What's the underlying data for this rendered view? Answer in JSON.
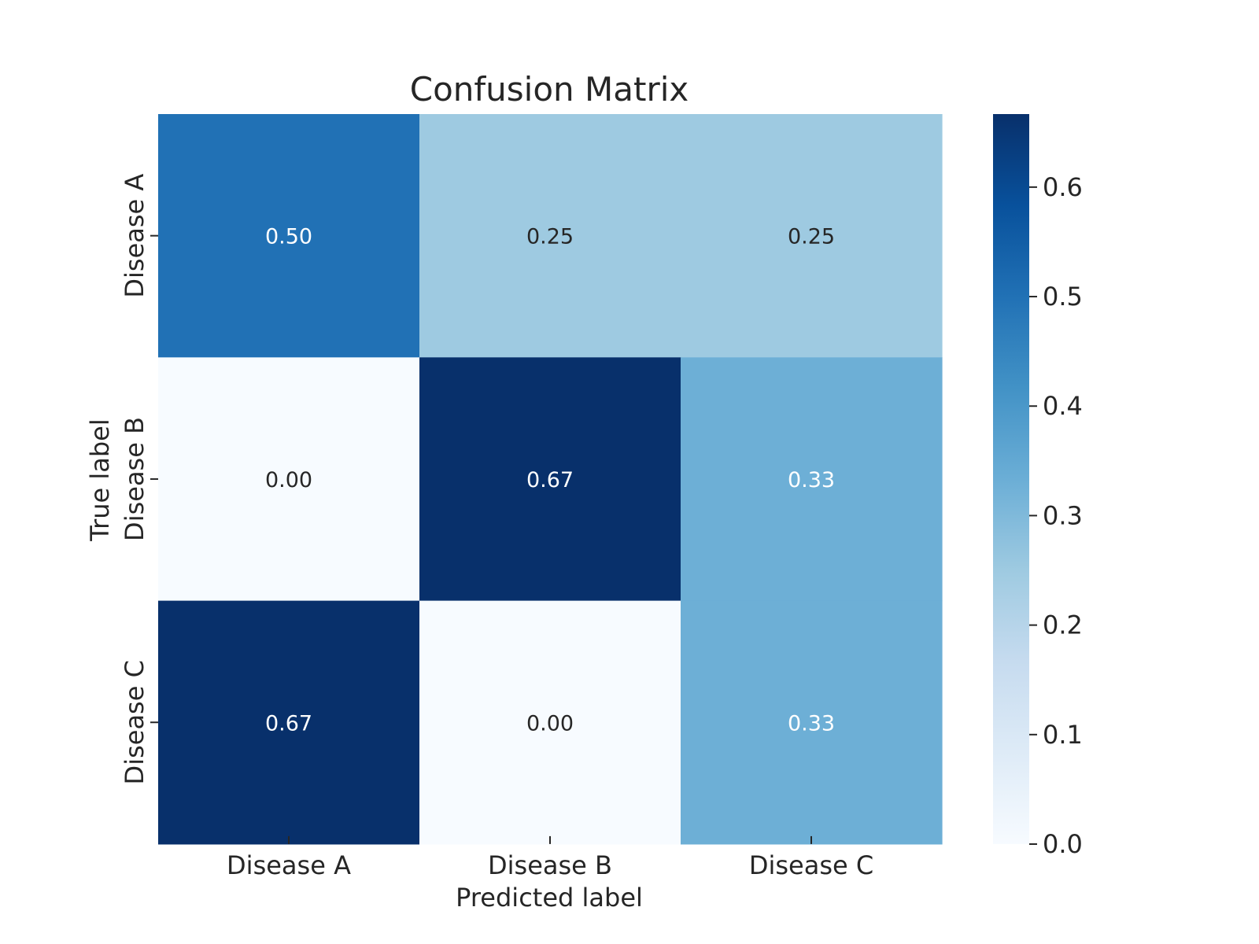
{
  "chart_data": {
    "type": "heatmap",
    "title": "Confusion Matrix",
    "xlabel": "Predicted label",
    "ylabel": "True label",
    "x_categories": [
      "Disease A",
      "Disease B",
      "Disease C"
    ],
    "y_categories": [
      "Disease A",
      "Disease B",
      "Disease C"
    ],
    "values": [
      [
        0.5,
        0.25,
        0.25
      ],
      [
        0.0,
        0.67,
        0.33
      ],
      [
        0.67,
        0.0,
        0.33
      ]
    ],
    "value_labels": [
      [
        "0.50",
        "0.25",
        "0.25"
      ],
      [
        "0.00",
        "0.67",
        "0.33"
      ],
      [
        "0.67",
        "0.00",
        "0.33"
      ]
    ],
    "colormap": "Blues",
    "colorbar": {
      "range": [
        0,
        0.6667
      ],
      "ticks": [
        0.0,
        0.1,
        0.2,
        0.3,
        0.4,
        0.5,
        0.6
      ],
      "tick_labels": [
        "0.0",
        "0.1",
        "0.2",
        "0.3",
        "0.4",
        "0.5",
        "0.6"
      ]
    },
    "grid": false,
    "legend": "colorbar-right"
  },
  "colors": {
    "text_dark": "#262626",
    "text_light": "#ffffff",
    "axis": "#262626",
    "blues": [
      "#f7fbff",
      "#deebf7",
      "#c6dbef",
      "#9ecae1",
      "#6baed6",
      "#4292c6",
      "#2171b5",
      "#08519c",
      "#08306b"
    ]
  }
}
